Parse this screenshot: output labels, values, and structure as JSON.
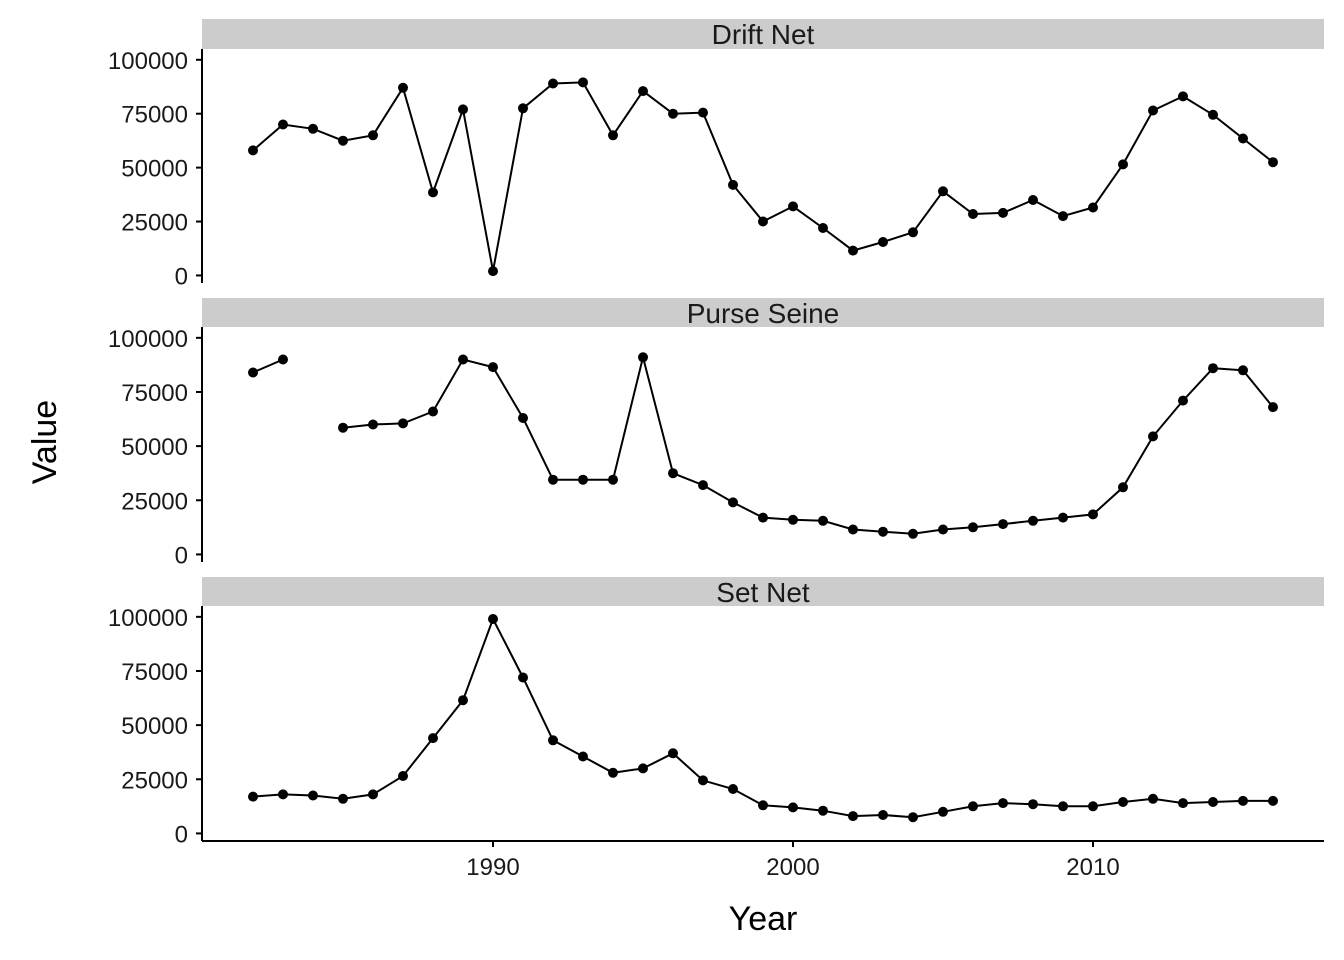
{
  "chart_data": {
    "type": "line",
    "xlabel": "Year",
    "ylabel": "Value",
    "xlim": [
      1980.3,
      2017.7
    ],
    "ylim": [
      -3500,
      105000
    ],
    "x_ticks": [
      1990,
      2000,
      2010
    ],
    "y_ticks": [
      0,
      25000,
      50000,
      75000,
      100000
    ],
    "grid": false,
    "legend": "none",
    "colors": {
      "line": "#000000",
      "point": "#000000",
      "strip": "#cccccc",
      "axis": "#000000"
    },
    "panels": [
      {
        "name": "Drift Net",
        "x": [
          1982,
          1983,
          1984,
          1985,
          1986,
          1987,
          1988,
          1989,
          1990,
          1991,
          1992,
          1993,
          1994,
          1995,
          1996,
          1997,
          1998,
          1999,
          2000,
          2001,
          2002,
          2003,
          2004,
          2005,
          2006,
          2007,
          2008,
          2009,
          2010,
          2011,
          2012,
          2013,
          2014,
          2015,
          2016
        ],
        "values": [
          58000,
          70000,
          68000,
          62500,
          65000,
          87000,
          38500,
          77000,
          2000,
          77500,
          89000,
          89500,
          65000,
          85500,
          75000,
          75500,
          42000,
          25000,
          32000,
          22000,
          11500,
          15500,
          20000,
          39000,
          28500,
          29000,
          35000,
          27500,
          31500,
          51500,
          76500,
          83000,
          74500,
          63500,
          52500
        ]
      },
      {
        "name": "Purse Seine",
        "x": [
          1982,
          1983,
          1984,
          1985,
          1986,
          1987,
          1988,
          1989,
          1990,
          1991,
          1992,
          1993,
          1994,
          1995,
          1996,
          1997,
          1998,
          1999,
          2000,
          2001,
          2002,
          2003,
          2004,
          2005,
          2006,
          2007,
          2008,
          2009,
          2010,
          2011,
          2012,
          2013,
          2014,
          2015,
          2016
        ],
        "values": [
          84000,
          90000,
          null,
          58500,
          60000,
          60500,
          66000,
          90000,
          86500,
          63000,
          34500,
          34500,
          34500,
          91000,
          37500,
          32000,
          24000,
          17000,
          16000,
          15500,
          11500,
          10500,
          9500,
          11500,
          12500,
          14000,
          15500,
          17000,
          18500,
          31000,
          54500,
          71000,
          86000,
          85000,
          68000
        ]
      },
      {
        "name": "Set Net",
        "x": [
          1982,
          1983,
          1984,
          1985,
          1986,
          1987,
          1988,
          1989,
          1990,
          1991,
          1992,
          1993,
          1994,
          1995,
          1996,
          1997,
          1998,
          1999,
          2000,
          2001,
          2002,
          2003,
          2004,
          2005,
          2006,
          2007,
          2008,
          2009,
          2010,
          2011,
          2012,
          2013,
          2014,
          2015,
          2016
        ],
        "values": [
          17000,
          18000,
          17500,
          16000,
          18000,
          26500,
          44000,
          61500,
          99000,
          72000,
          43000,
          35500,
          28000,
          30000,
          37000,
          24500,
          20500,
          13000,
          12000,
          10500,
          8000,
          8500,
          7500,
          10000,
          12500,
          14000,
          13500,
          12500,
          12500,
          14500,
          16000,
          14000,
          14500,
          15000,
          15000
        ]
      }
    ]
  }
}
